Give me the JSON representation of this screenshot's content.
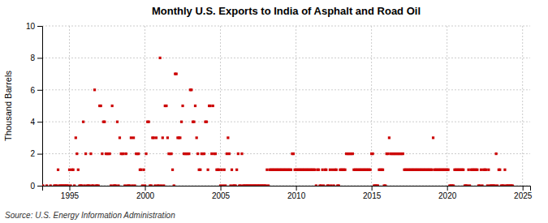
{
  "chart_data": {
    "type": "scatter",
    "title": "Monthly U.S. Exports to India of Asphalt and Road Oil",
    "ylabel": "Thousand Barrels",
    "annotations": [
      "Source: U.S. Energy Information Administration"
    ],
    "color": "#cc0000",
    "marker": "square",
    "grid": true,
    "xlim": [
      1993.2,
      2025.5
    ],
    "ylim": [
      0,
      10
    ],
    "xticks": [
      1995,
      2000,
      2005,
      2010,
      2015,
      2020,
      2025
    ],
    "yticks": [
      0,
      2,
      4,
      6,
      8,
      10
    ],
    "x": [
      1993.25,
      1993.5,
      1993.75,
      1994.0,
      1994.08,
      1994.17,
      1994.25,
      1994.33,
      1994.42,
      1994.5,
      1994.58,
      1994.67,
      1994.75,
      1994.83,
      1994.92,
      1995.0,
      1995.08,
      1995.17,
      1995.25,
      1995.33,
      1995.42,
      1995.5,
      1995.58,
      1995.67,
      1995.75,
      1995.83,
      1995.92,
      1996.0,
      1996.08,
      1996.17,
      1996.25,
      1996.33,
      1996.42,
      1996.5,
      1996.58,
      1996.67,
      1996.75,
      1996.83,
      1996.92,
      1997.0,
      1997.08,
      1997.17,
      1997.25,
      1997.33,
      1997.42,
      1997.5,
      1997.58,
      1997.67,
      1997.75,
      1997.83,
      1997.92,
      1998.0,
      1998.08,
      1998.17,
      1998.25,
      1998.33,
      1998.42,
      1998.5,
      1998.58,
      1998.67,
      1998.75,
      1998.83,
      1998.92,
      1999.0,
      1999.08,
      1999.17,
      1999.25,
      1999.33,
      1999.42,
      1999.5,
      1999.58,
      1999.67,
      1999.75,
      1999.83,
      1999.92,
      2000.0,
      2000.08,
      2000.17,
      2000.25,
      2000.33,
      2000.42,
      2000.5,
      2000.58,
      2000.67,
      2000.75,
      2000.83,
      2000.92,
      2001.0,
      2001.08,
      2001.17,
      2001.25,
      2001.33,
      2001.42,
      2001.5,
      2001.58,
      2001.67,
      2001.75,
      2001.83,
      2001.92,
      2002.0,
      2002.08,
      2002.17,
      2002.25,
      2002.33,
      2002.42,
      2002.5,
      2002.58,
      2002.67,
      2002.75,
      2002.83,
      2002.92,
      2003.0,
      2003.08,
      2003.17,
      2003.25,
      2003.33,
      2003.42,
      2003.5,
      2003.58,
      2003.67,
      2003.75,
      2003.83,
      2003.92,
      2004.0,
      2004.08,
      2004.17,
      2004.25,
      2004.33,
      2004.42,
      2004.5,
      2004.58,
      2004.67,
      2004.75,
      2004.83,
      2004.92,
      2005.0,
      2005.08,
      2005.17,
      2005.25,
      2005.33,
      2005.42,
      2005.5,
      2005.58,
      2005.67,
      2005.75,
      2005.83,
      2005.92,
      2006.0,
      2006.08,
      2006.17,
      2006.25,
      2006.33,
      2006.42,
      2006.5,
      2006.58,
      2006.67,
      2006.75,
      2006.83,
      2006.92,
      2007.0,
      2007.08,
      2007.17,
      2007.25,
      2007.33,
      2007.42,
      2007.5,
      2007.58,
      2007.67,
      2007.75,
      2007.83,
      2007.92,
      2008.0,
      2008.08,
      2008.17,
      2008.25,
      2008.33,
      2008.42,
      2008.5,
      2008.58,
      2008.67,
      2008.75,
      2008.83,
      2008.92,
      2009.0,
      2009.08,
      2009.17,
      2009.25,
      2009.33,
      2009.42,
      2009.5,
      2009.58,
      2009.67,
      2009.75,
      2009.83,
      2009.92,
      2010.0,
      2010.08,
      2010.17,
      2010.25,
      2010.33,
      2010.42,
      2010.5,
      2010.58,
      2010.67,
      2010.75,
      2010.83,
      2010.92,
      2011.0,
      2011.08,
      2011.17,
      2011.25,
      2011.33,
      2011.42,
      2011.5,
      2011.58,
      2011.67,
      2011.75,
      2011.83,
      2011.92,
      2012.0,
      2012.08,
      2012.17,
      2012.25,
      2012.33,
      2012.42,
      2012.5,
      2012.58,
      2012.67,
      2012.75,
      2012.83,
      2012.92,
      2013.0,
      2013.08,
      2013.17,
      2013.25,
      2013.33,
      2013.42,
      2013.5,
      2013.58,
      2013.67,
      2013.75,
      2013.83,
      2013.92,
      2014.0,
      2014.08,
      2014.17,
      2014.25,
      2014.33,
      2014.42,
      2014.5,
      2014.58,
      2014.67,
      2014.75,
      2014.83,
      2014.92,
      2015.0,
      2015.08,
      2015.17,
      2015.25,
      2015.33,
      2015.42,
      2015.5,
      2015.58,
      2015.67,
      2015.75,
      2015.83,
      2015.92,
      2016.0,
      2016.08,
      2016.17,
      2016.25,
      2016.33,
      2016.42,
      2016.5,
      2016.58,
      2016.67,
      2016.75,
      2016.83,
      2016.92,
      2017.0,
      2017.08,
      2017.17,
      2017.25,
      2017.33,
      2017.42,
      2017.5,
      2017.58,
      2017.67,
      2017.75,
      2017.83,
      2017.92,
      2018.0,
      2018.08,
      2018.17,
      2018.25,
      2018.33,
      2018.42,
      2018.5,
      2018.58,
      2018.67,
      2018.75,
      2018.83,
      2018.92,
      2019.0,
      2019.08,
      2019.17,
      2019.25,
      2019.33,
      2019.42,
      2019.5,
      2019.58,
      2019.67,
      2019.75,
      2019.83,
      2019.92,
      2020.0,
      2020.08,
      2020.17,
      2020.25,
      2020.33,
      2020.42,
      2020.5,
      2020.58,
      2020.67,
      2020.75,
      2020.83,
      2020.92,
      2021.0,
      2021.08,
      2021.17,
      2021.25,
      2021.33,
      2021.42,
      2021.5,
      2021.58,
      2021.67,
      2021.75,
      2021.83,
      2021.92,
      2022.0,
      2022.08,
      2022.17,
      2022.25,
      2022.33,
      2022.42,
      2022.5,
      2022.58,
      2022.67,
      2022.75,
      2022.83,
      2022.92,
      2023.0,
      2023.08,
      2023.17,
      2023.25,
      2023.33,
      2023.42,
      2023.5,
      2023.58,
      2023.67,
      2023.75,
      2023.83,
      2023.92,
      2024.0,
      2024.08,
      2024.17,
      2024.25,
      2024.33
    ],
    "values": [
      0,
      0,
      0,
      0,
      0,
      0,
      1,
      0,
      0,
      0,
      0,
      0,
      0,
      0,
      0,
      1,
      0,
      1,
      1,
      0,
      3,
      2,
      1,
      0,
      0,
      0,
      4,
      0,
      2,
      0,
      0,
      0,
      2,
      0,
      0,
      6,
      0,
      0,
      0,
      5,
      5,
      2,
      4,
      4,
      2,
      2,
      2,
      2,
      0,
      5,
      0,
      0,
      0,
      4,
      0,
      3,
      2,
      2,
      2,
      0,
      2,
      0,
      0,
      0,
      3,
      0,
      3,
      0,
      2,
      2,
      2,
      1,
      1,
      0,
      1,
      0,
      2,
      4,
      4,
      0,
      0,
      3,
      3,
      0,
      3,
      0,
      0,
      8,
      0,
      3,
      0,
      5,
      5,
      3,
      2,
      2,
      2,
      1,
      0,
      7,
      7,
      3,
      3,
      3,
      4,
      5,
      2,
      2,
      2,
      2,
      2,
      6,
      6,
      4,
      4,
      5,
      3,
      2,
      1,
      1,
      2,
      2,
      2,
      4,
      4,
      1,
      5,
      5,
      2,
      5,
      2,
      2,
      1,
      1,
      1,
      0,
      1,
      0,
      1,
      0,
      2,
      3,
      2,
      0,
      1,
      0,
      0,
      0,
      1,
      2,
      0,
      0,
      2,
      0,
      0,
      0,
      0,
      0,
      0,
      0,
      0,
      0,
      0,
      0,
      0,
      0,
      0,
      0,
      0,
      0,
      0,
      0,
      1,
      0,
      1,
      1,
      1,
      1,
      1,
      1,
      1,
      1,
      1,
      1,
      1,
      1,
      1,
      1,
      1,
      1,
      1,
      1,
      2,
      2,
      1,
      1,
      1,
      1,
      1,
      1,
      1,
      1,
      1,
      1,
      1,
      1,
      1,
      1,
      1,
      1,
      1,
      0,
      1,
      1,
      0,
      0,
      1,
      0,
      1,
      1,
      0,
      0,
      1,
      0,
      1,
      0,
      1,
      1,
      0,
      0,
      1,
      1,
      1,
      1,
      1,
      2,
      2,
      2,
      2,
      2,
      2,
      1,
      1,
      1,
      1,
      1,
      1,
      1,
      1,
      1,
      1,
      1,
      1,
      1,
      1,
      2,
      2,
      0,
      0,
      0,
      0,
      1,
      1,
      1,
      1,
      0,
      0,
      2,
      2,
      3,
      2,
      2,
      2,
      2,
      2,
      2,
      2,
      2,
      2,
      2,
      2,
      1,
      1,
      1,
      1,
      1,
      1,
      1,
      1,
      1,
      1,
      1,
      1,
      1,
      1,
      1,
      1,
      1,
      1,
      1,
      1,
      1,
      1,
      1,
      3,
      1,
      1,
      1,
      1,
      1,
      1,
      1,
      1,
      1,
      1,
      1,
      1,
      0,
      0,
      0,
      0,
      1,
      1,
      1,
      1,
      1,
      1,
      1,
      1,
      0,
      0,
      0,
      1,
      0,
      1,
      1,
      1,
      1,
      1,
      1,
      0,
      0,
      1,
      0,
      1,
      1,
      1,
      0,
      1,
      0,
      0,
      0,
      0,
      0,
      2,
      0,
      1,
      1,
      0,
      0,
      0,
      1,
      0,
      0,
      0,
      0,
      0,
      0
    ]
  }
}
